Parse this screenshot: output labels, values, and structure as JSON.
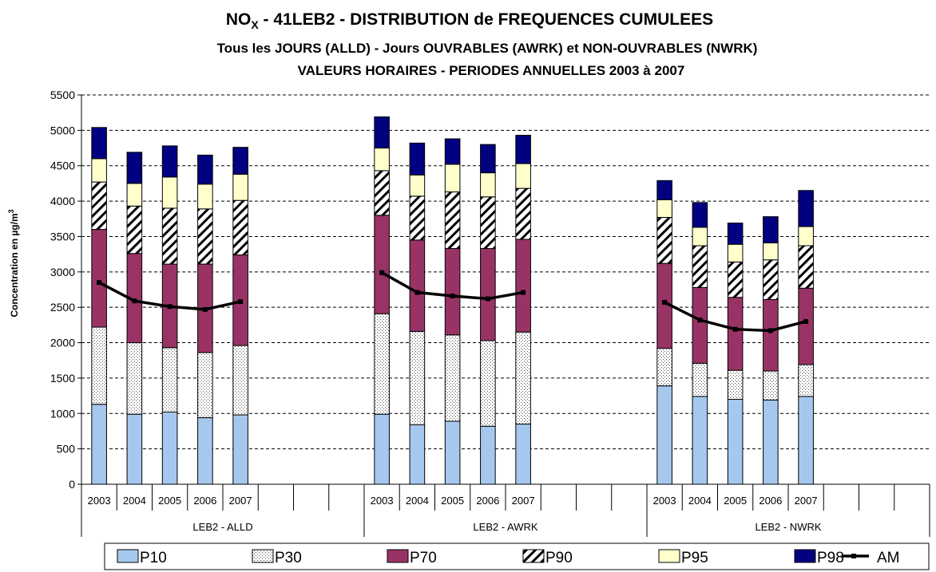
{
  "chart_data": {
    "type": "bar",
    "stacked": true,
    "title": {
      "main": "NO",
      "main_sub": "X",
      "main_rest": " - 41LEB2 - DISTRIBUTION de FREQUENCES CUMULEES",
      "line2": "Tous les JOURS (ALLD)  -  Jours OUVRABLES (AWRK) et  NON-OUVRABLES (NWRK)",
      "line3": "VALEURS HORAIRES   -   PERIODES ANNUELLES 2003 à 2007"
    },
    "ylabel": "Concentration en µg/m",
    "ylabel_sup": "3",
    "ylim": [
      0,
      5500
    ],
    "ytick_step": 500,
    "grid": "horizontal dashed",
    "legend_position": "bottom",
    "groups": [
      {
        "label": "LEB2 - ALLD",
        "years": [
          "2003",
          "2004",
          "2005",
          "2006",
          "2007"
        ],
        "slots": 8
      },
      {
        "label": "LEB2 - AWRK",
        "years": [
          "2003",
          "2004",
          "2005",
          "2006",
          "2007"
        ],
        "slots": 8
      },
      {
        "label": "LEB2 - NWRK",
        "years": [
          "2003",
          "2004",
          "2005",
          "2006",
          "2007"
        ],
        "slots": 8
      }
    ],
    "series": [
      {
        "name": "P10",
        "color": "#a6c8ee",
        "pattern": "solid",
        "values": [
          [
            1130,
            990,
            1020,
            940,
            980
          ],
          [
            990,
            840,
            890,
            820,
            850
          ],
          [
            1390,
            1240,
            1200,
            1190,
            1240
          ]
        ]
      },
      {
        "name": "P30",
        "color": "#ffffff",
        "pattern": "dots",
        "values": [
          [
            2220,
            2000,
            1930,
            1860,
            1960
          ],
          [
            2410,
            2160,
            2110,
            2030,
            2150
          ],
          [
            1920,
            1710,
            1610,
            1600,
            1690
          ]
        ]
      },
      {
        "name": "P70",
        "color": "#993366",
        "pattern": "solid",
        "values": [
          [
            3600,
            3260,
            3110,
            3110,
            3240
          ],
          [
            3800,
            3450,
            3330,
            3330,
            3460
          ],
          [
            3120,
            2780,
            2640,
            2610,
            2770
          ]
        ]
      },
      {
        "name": "P90",
        "color": "#ffffff",
        "pattern": "hatch",
        "values": [
          [
            4270,
            3930,
            3900,
            3890,
            4010
          ],
          [
            4430,
            4070,
            4130,
            4060,
            4180
          ],
          [
            3770,
            3370,
            3140,
            3170,
            3370
          ]
        ]
      },
      {
        "name": "P95",
        "color": "#ffffcc",
        "pattern": "solid",
        "values": [
          [
            4600,
            4250,
            4340,
            4240,
            4380
          ],
          [
            4750,
            4370,
            4520,
            4400,
            4530
          ],
          [
            4020,
            3630,
            3390,
            3410,
            3640
          ]
        ]
      },
      {
        "name": "P98",
        "color": "#000080",
        "pattern": "solid",
        "values": [
          [
            5040,
            4690,
            4780,
            4650,
            4760
          ],
          [
            5190,
            4820,
            4880,
            4800,
            4930
          ],
          [
            4290,
            3980,
            3690,
            3780,
            4150
          ]
        ]
      }
    ],
    "line_series": {
      "name": "AM",
      "color": "#000000",
      "values": [
        [
          2850,
          2590,
          2510,
          2470,
          2580
        ],
        [
          2990,
          2710,
          2660,
          2620,
          2710
        ],
        [
          2570,
          2320,
          2190,
          2170,
          2300
        ]
      ]
    },
    "legend": [
      "P10",
      "P30",
      "P70",
      "P90",
      "P95",
      "P98",
      "AM"
    ]
  }
}
